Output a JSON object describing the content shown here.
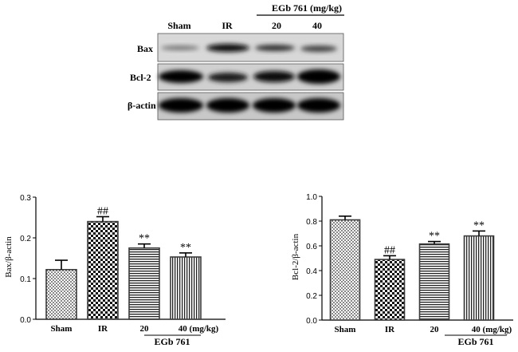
{
  "blot": {
    "group_header": "EGb 761 (mg/kg)",
    "lane_labels": [
      "Sham",
      "IR",
      "20",
      "40"
    ],
    "row_labels": [
      "Bax",
      "Bcl-2",
      "β-actin"
    ]
  },
  "chart_data": [
    {
      "type": "bar",
      "categories": [
        "Sham",
        "IR",
        "20",
        "40 (mg/kg)"
      ],
      "values": [
        0.122,
        0.24,
        0.175,
        0.153
      ],
      "errors": [
        0.023,
        0.012,
        0.01,
        0.01
      ],
      "annotations": [
        "",
        "##",
        "**",
        "**"
      ],
      "bar_colors": [
        "#3c3c3c",
        "#3c3c3c",
        "#3c3c3c",
        "#3c3c3c"
      ],
      "group_label": "EGb 761",
      "ylabel": "Bax/β-actin",
      "ylim": [
        0,
        0.3
      ],
      "yticks": [
        "0.0",
        "0.1",
        "0.2",
        "0.3"
      ],
      "grid": false
    },
    {
      "type": "bar",
      "categories": [
        "Sham",
        "IR",
        "20",
        "40 (mg/kg)"
      ],
      "values": [
        0.81,
        0.49,
        0.615,
        0.68
      ],
      "errors": [
        0.03,
        0.03,
        0.02,
        0.04
      ],
      "annotations": [
        "",
        "##",
        "**",
        "**"
      ],
      "bar_colors": [
        "#3c3c3c",
        "#3c3c3c",
        "#3c3c3c",
        "#3c3c3c"
      ],
      "group_label": "EGb 761",
      "ylabel": "Bcl-2/β-actin",
      "ylim": [
        0,
        1.0
      ],
      "yticks": [
        "0.0",
        "0.2",
        "0.4",
        "0.6",
        "0.8",
        "1.0"
      ],
      "grid": false
    }
  ]
}
